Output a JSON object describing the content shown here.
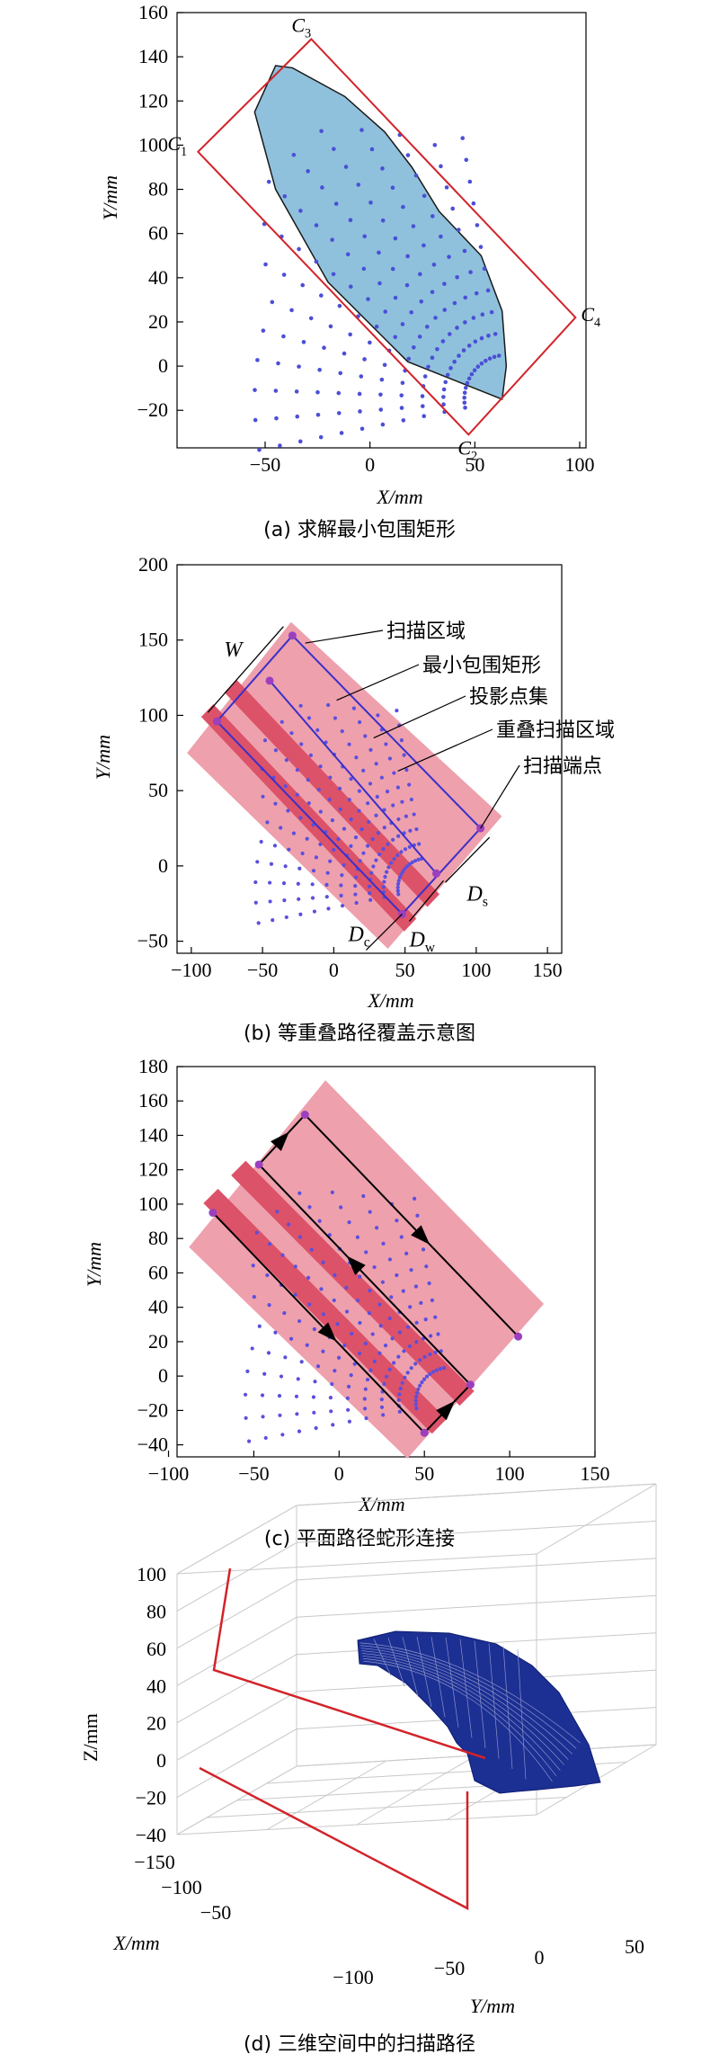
{
  "chart_data": [
    {
      "id": "a",
      "type": "scatter",
      "caption": "(a) 求解最小包围矩形",
      "xlabel": "X/mm",
      "ylabel": "Y/mm",
      "xlim": [
        -92,
        103
      ],
      "ylim": [
        -37,
        160
      ],
      "xticks": [
        -50,
        0,
        50,
        100
      ],
      "yticks": [
        -20,
        0,
        20,
        40,
        60,
        80,
        100,
        120,
        140,
        160
      ],
      "hull": [
        [
          -45,
          136
        ],
        [
          -37,
          135
        ],
        [
          -12,
          122
        ],
        [
          7,
          106
        ],
        [
          20,
          90
        ],
        [
          33,
          70
        ],
        [
          53,
          50
        ],
        [
          63,
          25
        ],
        [
          65,
          0
        ],
        [
          63,
          -15
        ],
        [
          18,
          2
        ],
        [
          -20,
          38
        ],
        [
          -45,
          80
        ],
        [
          -55,
          115
        ]
      ],
      "rectangle": [
        [
          -82,
          97
        ],
        [
          -28,
          148
        ],
        [
          98,
          22
        ],
        [
          47,
          -31
        ]
      ],
      "corner_labels": [
        {
          "name": "C",
          "sub": "1",
          "x": -82,
          "y": 97
        },
        {
          "name": "C",
          "sub": "3",
          "x": -28,
          "y": 148
        },
        {
          "name": "C",
          "sub": "4",
          "x": 98,
          "y": 22
        },
        {
          "name": "C",
          "sub": "2",
          "x": 47,
          "y": -31
        }
      ],
      "colors": {
        "hull_fill": "#8fc1dc",
        "points": "#4b4fd6",
        "rectangle": "#d2232a"
      }
    },
    {
      "id": "b",
      "type": "scatter",
      "caption": "(b) 等重叠路径覆盖示意图",
      "xlabel": "X/mm",
      "ylabel": "Y/mm",
      "xlim": [
        -110,
        160
      ],
      "ylim": [
        -58,
        200
      ],
      "xticks": [
        -100,
        -50,
        0,
        50,
        100,
        150
      ],
      "yticks": [
        -50,
        0,
        50,
        100,
        150,
        200
      ],
      "scan_region": [
        [
          -103,
          75
        ],
        [
          -30,
          162
        ],
        [
          118,
          33
        ],
        [
          38,
          -55
        ]
      ],
      "overlap_bands": [
        {
          "u": 30,
          "half_width": 6
        },
        {
          "u": 53,
          "half_width": 6
        }
      ],
      "bounding_rect": [
        [
          -82,
          96
        ],
        [
          -29,
          153
        ],
        [
          103,
          25
        ],
        [
          48,
          -32
        ]
      ],
      "endpoints": [
        [
          -29,
          153
        ],
        [
          -45,
          123
        ],
        [
          -82,
          96
        ],
        [
          103,
          25
        ],
        [
          72,
          -5
        ],
        [
          48,
          -32
        ]
      ],
      "dimension_labels": {
        "W": "W",
        "Dc": "D",
        "Dc_sub": "c",
        "Dw": "D",
        "Dw_sub": "w",
        "Ds": "D",
        "Ds_sub": "s"
      },
      "annotations": [
        "扫描区域",
        "最小包围矩形",
        "投影点集",
        "重叠扫描区域",
        "扫描端点"
      ],
      "colors": {
        "region": "#eea0ad",
        "overlap": "#dc5268",
        "points": "#5b4fdd",
        "rectangle": "#3b2fc9",
        "endpoint": "#9b3fbf"
      }
    },
    {
      "id": "c",
      "type": "line",
      "caption": "(c) 平面路径蛇形连接",
      "xlabel": "X/mm",
      "ylabel": "Y/mm",
      "xlim": [
        -95,
        150
      ],
      "ylim": [
        -47,
        180
      ],
      "xticks": [
        -100,
        -50,
        0,
        50,
        100,
        150
      ],
      "yticks": [
        -40,
        -20,
        0,
        20,
        40,
        60,
        80,
        100,
        120,
        140,
        160,
        180
      ],
      "scan_region": [
        [
          -88,
          75
        ],
        [
          -8,
          172
        ],
        [
          120,
          42
        ],
        [
          40,
          -48
        ]
      ],
      "overlap_bands": [
        {
          "u": 30,
          "half_width": 6
        },
        {
          "u": 53,
          "half_width": 6
        }
      ],
      "path": [
        [
          -74,
          95
        ],
        [
          50,
          -33
        ],
        [
          77,
          -5
        ],
        [
          -47,
          123
        ],
        [
          -20,
          152
        ],
        [
          105,
          23
        ]
      ],
      "colors": {
        "region": "#eea0ad",
        "overlap": "#dc5268",
        "points": "#5b4fdd",
        "path": "#000000",
        "endpoint": "#9b3fbf"
      }
    },
    {
      "id": "d",
      "type": "surface3d",
      "caption": "(d) 三维空间中的扫描路径",
      "xlabel": "X/mm",
      "ylabel": "Y/mm",
      "zlabel": "Z/mm",
      "x_ticks": [
        -150,
        -100,
        -50
      ],
      "y_ticks": [
        -100,
        -50,
        0,
        50
      ],
      "z_ticks": [
        -40,
        -20,
        0,
        20,
        40,
        60,
        80,
        100
      ],
      "colors": {
        "surface": "#1c2f93",
        "mesh": "#8a93c8",
        "path": "#d2232a",
        "grid": "#c8c8c8"
      }
    }
  ]
}
